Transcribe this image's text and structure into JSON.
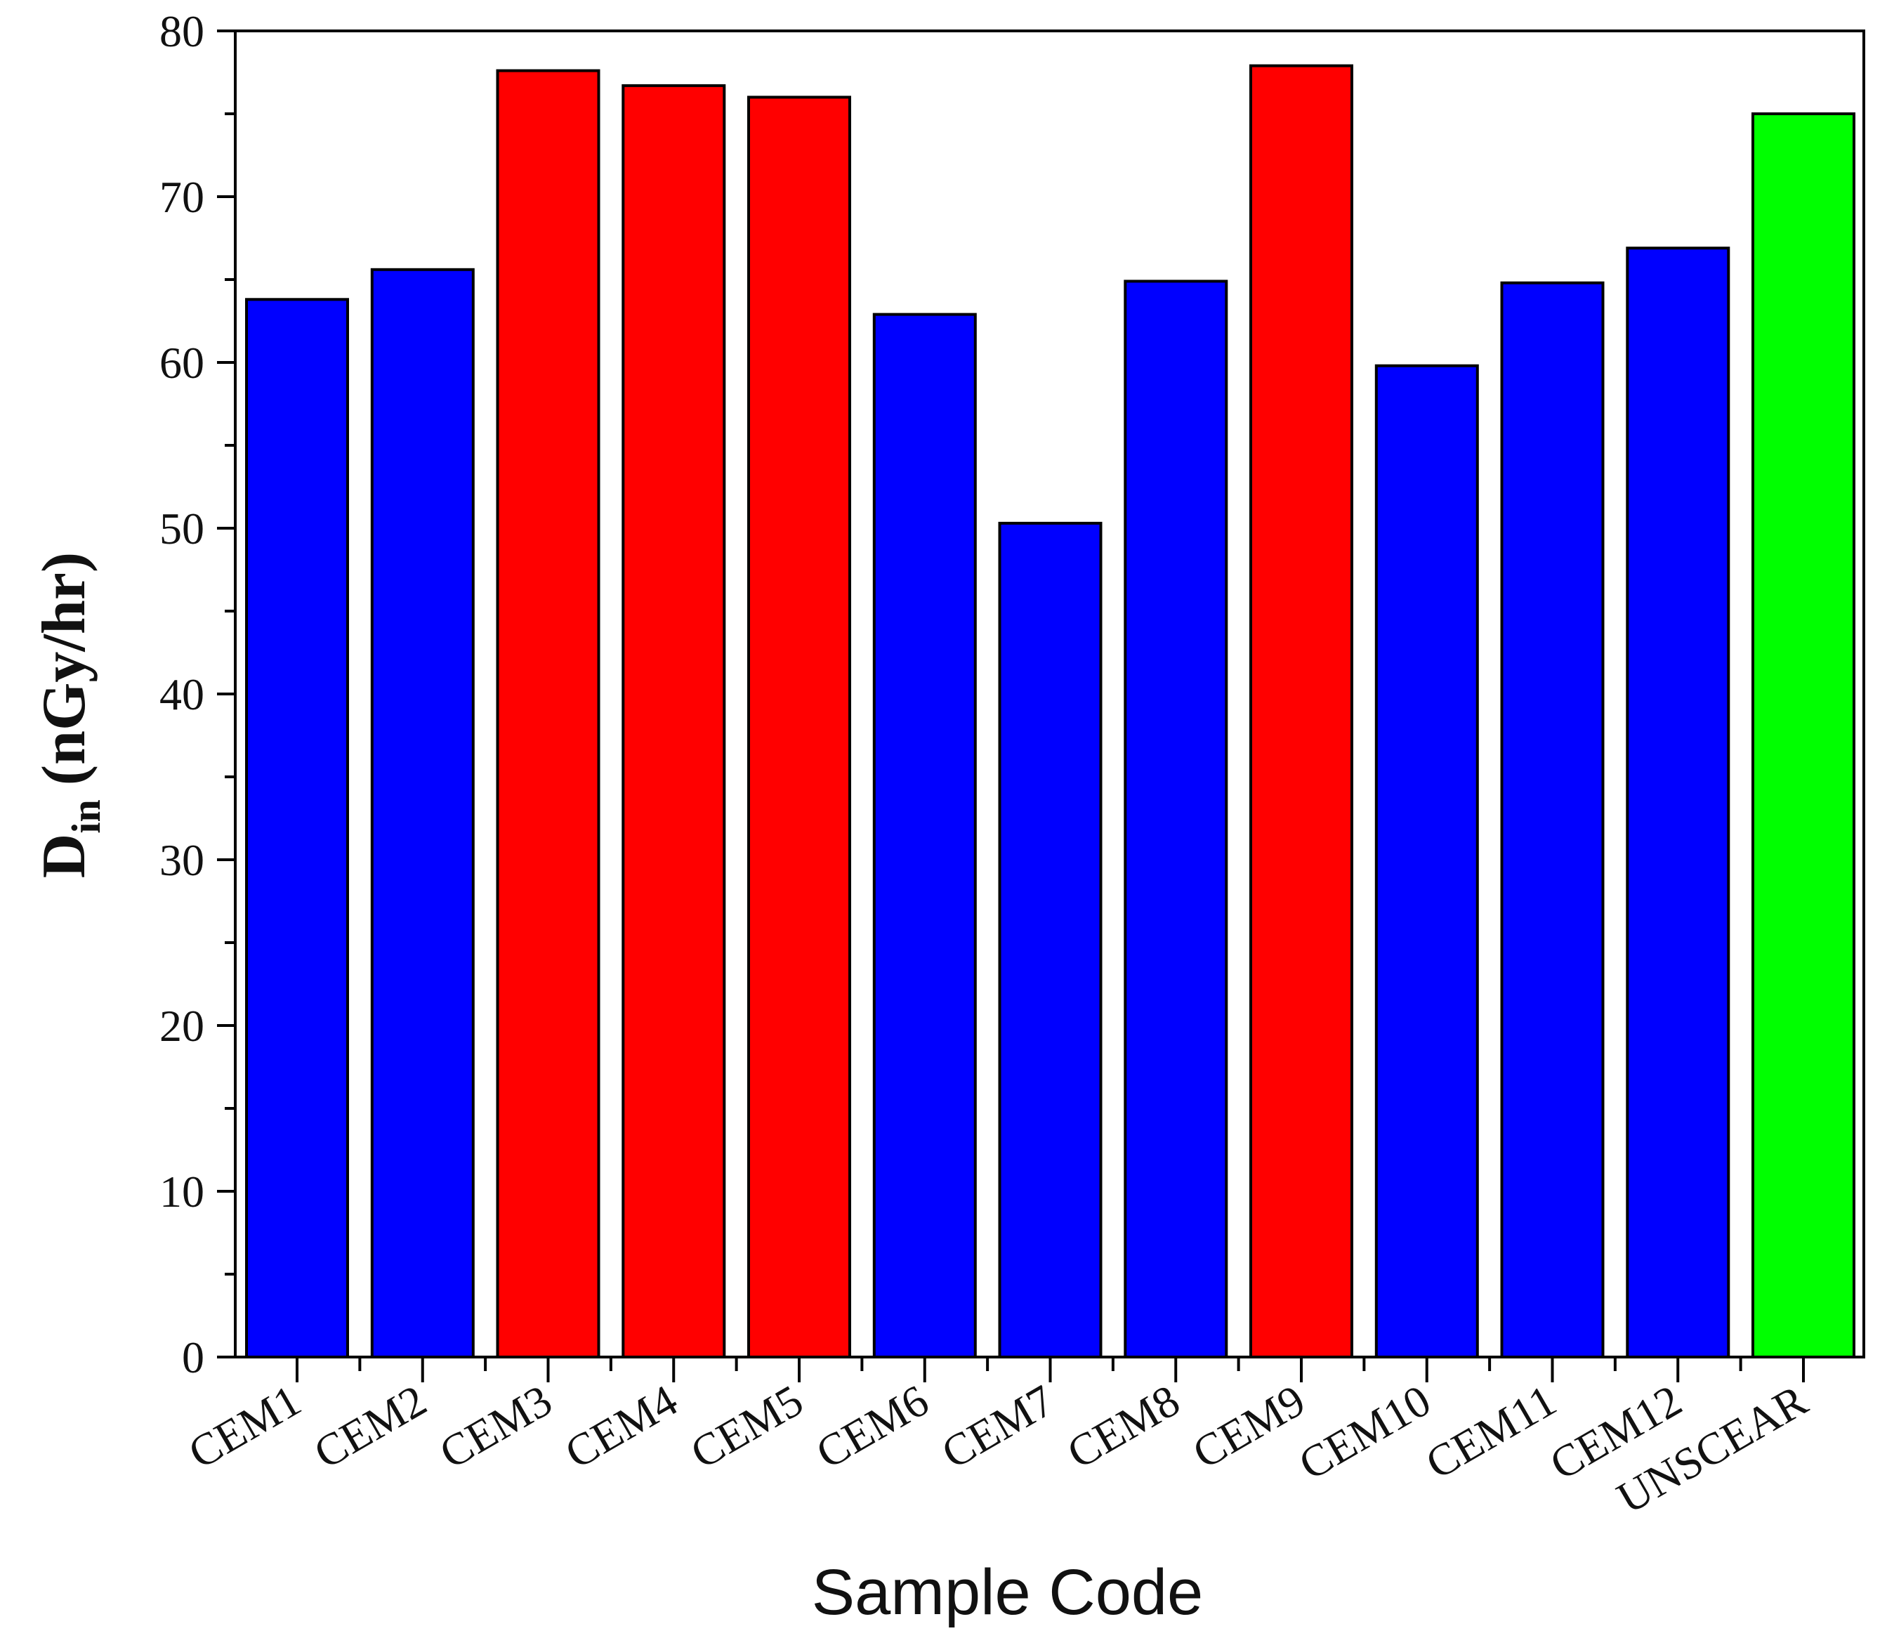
{
  "chart_data": {
    "type": "bar",
    "title": "",
    "xlabel": "Sample Code",
    "ylabel": {
      "main": "D",
      "subscript": "in",
      "unit": "(nGy/hr)"
    },
    "ylim": [
      0,
      80
    ],
    "yticks": [
      0,
      10,
      20,
      30,
      40,
      50,
      60,
      70,
      80
    ],
    "categories": [
      "CEM1",
      "CEM2",
      "CEM3",
      "CEM4",
      "CEM5",
      "CEM6",
      "CEM7",
      "CEM8",
      "CEM9",
      "CEM10",
      "CEM11",
      "CEM12",
      "UNSCEAR"
    ],
    "values": [
      63.8,
      65.6,
      77.6,
      76.7,
      76.0,
      62.9,
      50.3,
      64.9,
      77.9,
      59.8,
      64.8,
      66.9,
      75.0
    ],
    "bar_colors": [
      "#0000ff",
      "#0000ff",
      "#ff0000",
      "#ff0000",
      "#ff0000",
      "#0000ff",
      "#0000ff",
      "#0000ff",
      "#ff0000",
      "#0000ff",
      "#0000ff",
      "#0000ff",
      "#00ff00"
    ],
    "legend": "none",
    "grid": false
  }
}
